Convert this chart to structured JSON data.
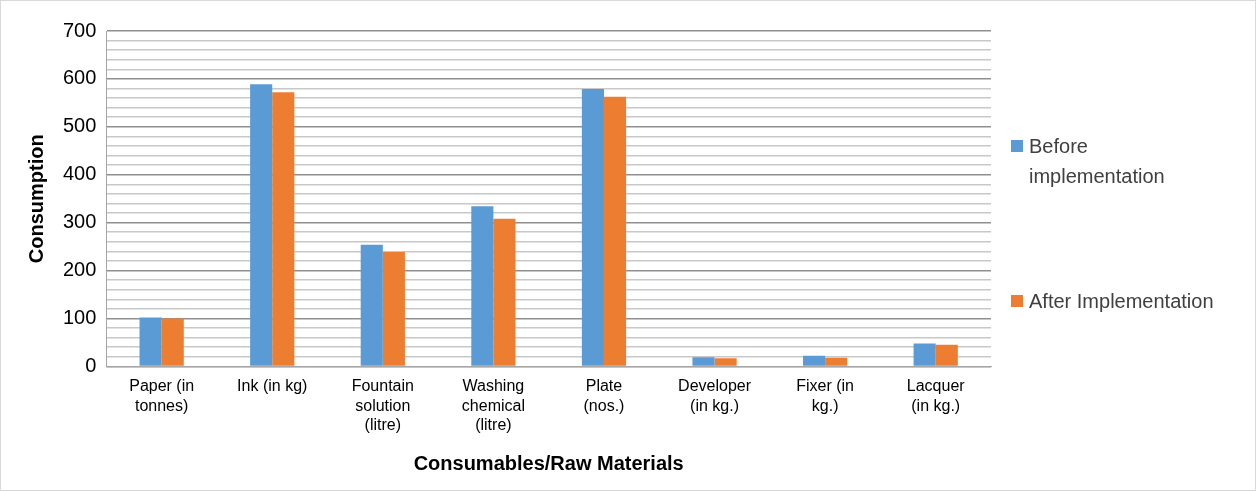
{
  "chart_data": {
    "type": "bar",
    "xlabel": "Consumables/Raw Materials",
    "ylabel": "Consumption",
    "categories": [
      "Paper (in tonnes)",
      "Ink (in kg)",
      "Fountain solution (litre)",
      "Washing chemical (litre)",
      "Plate (nos.)",
      "Developer (in kg.)",
      "Fixer (in kg.)",
      "Lacquer (in kg.)"
    ],
    "series": [
      {
        "name": "Before implementation",
        "color": "#5b9bd5",
        "values": [
          102,
          589,
          254,
          334,
          579,
          19,
          22,
          48
        ]
      },
      {
        "name": "After Implementation",
        "color": "#ed7d31",
        "values": [
          100,
          572,
          239,
          308,
          563,
          17,
          18,
          45
        ]
      }
    ],
    "ylim": [
      0,
      700
    ],
    "yticks": [
      0,
      {
        "value": 20,
        "label": null
      },
      {
        "value": 40,
        "label": null
      },
      {
        "value": 60,
        "label": null
      },
      {
        "value": 80,
        "label": null
      },
      100,
      {
        "value": 120,
        "label": null
      },
      {
        "value": 140,
        "label": null
      },
      {
        "value": 160,
        "label": null
      },
      {
        "value": 180,
        "label": null
      },
      200,
      {
        "value": 220,
        "label": null
      },
      {
        "value": 240,
        "label": null
      },
      {
        "value": 260,
        "label": null
      },
      {
        "value": 280,
        "label": null
      },
      300,
      {
        "value": 320,
        "label": null
      },
      {
        "value": 340,
        "label": null
      },
      {
        "value": 360,
        "label": null
      },
      {
        "value": 380,
        "label": null
      },
      400,
      {
        "value": 420,
        "label": null
      },
      {
        "value": 440,
        "label": null
      },
      {
        "value": 460,
        "label": null
      },
      {
        "value": 480,
        "label": null
      },
      500,
      {
        "value": 520,
        "label": null
      },
      {
        "value": 540,
        "label": null
      },
      {
        "value": 560,
        "label": null
      },
      {
        "value": 580,
        "label": null
      },
      600,
      {
        "value": 620,
        "label": null
      },
      {
        "value": 640,
        "label": null
      },
      {
        "value": 660,
        "label": null
      },
      {
        "value": 680,
        "label": null
      },
      700
    ],
    "grid": "y",
    "legend": "right"
  }
}
